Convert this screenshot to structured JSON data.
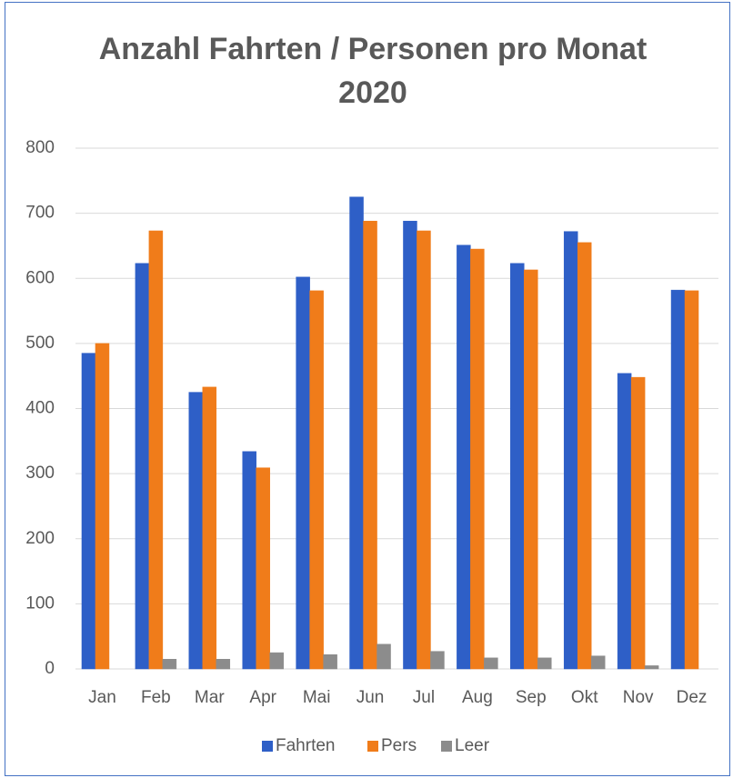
{
  "chart_data": {
    "type": "bar",
    "title": "Anzahl Fahrten / Personen pro Monat 2020",
    "categories": [
      "Jan",
      "Feb",
      "Mar",
      "Apr",
      "Mai",
      "Jun",
      "Jul",
      "Aug",
      "Sep",
      "Okt",
      "Nov",
      "Dez"
    ],
    "series": [
      {
        "name": "Fahrten",
        "color": "#2e5fc7",
        "values": [
          485,
          623,
          425,
          334,
          602,
          725,
          688,
          651,
          623,
          672,
          454,
          582
        ]
      },
      {
        "name": "Pers",
        "color": "#f07c1a",
        "values": [
          500,
          673,
          433,
          309,
          581,
          688,
          673,
          645,
          613,
          655,
          448,
          581
        ]
      },
      {
        "name": "Leer",
        "color": "#8c8c8c",
        "values": [
          0,
          15,
          15,
          25,
          22,
          38,
          27,
          17,
          17,
          20,
          5,
          0
        ]
      }
    ],
    "ylim": [
      0,
      800
    ],
    "yticks": [
      0,
      100,
      200,
      300,
      400,
      500,
      600,
      700,
      800
    ],
    "grid": true,
    "legend": "bottom"
  }
}
